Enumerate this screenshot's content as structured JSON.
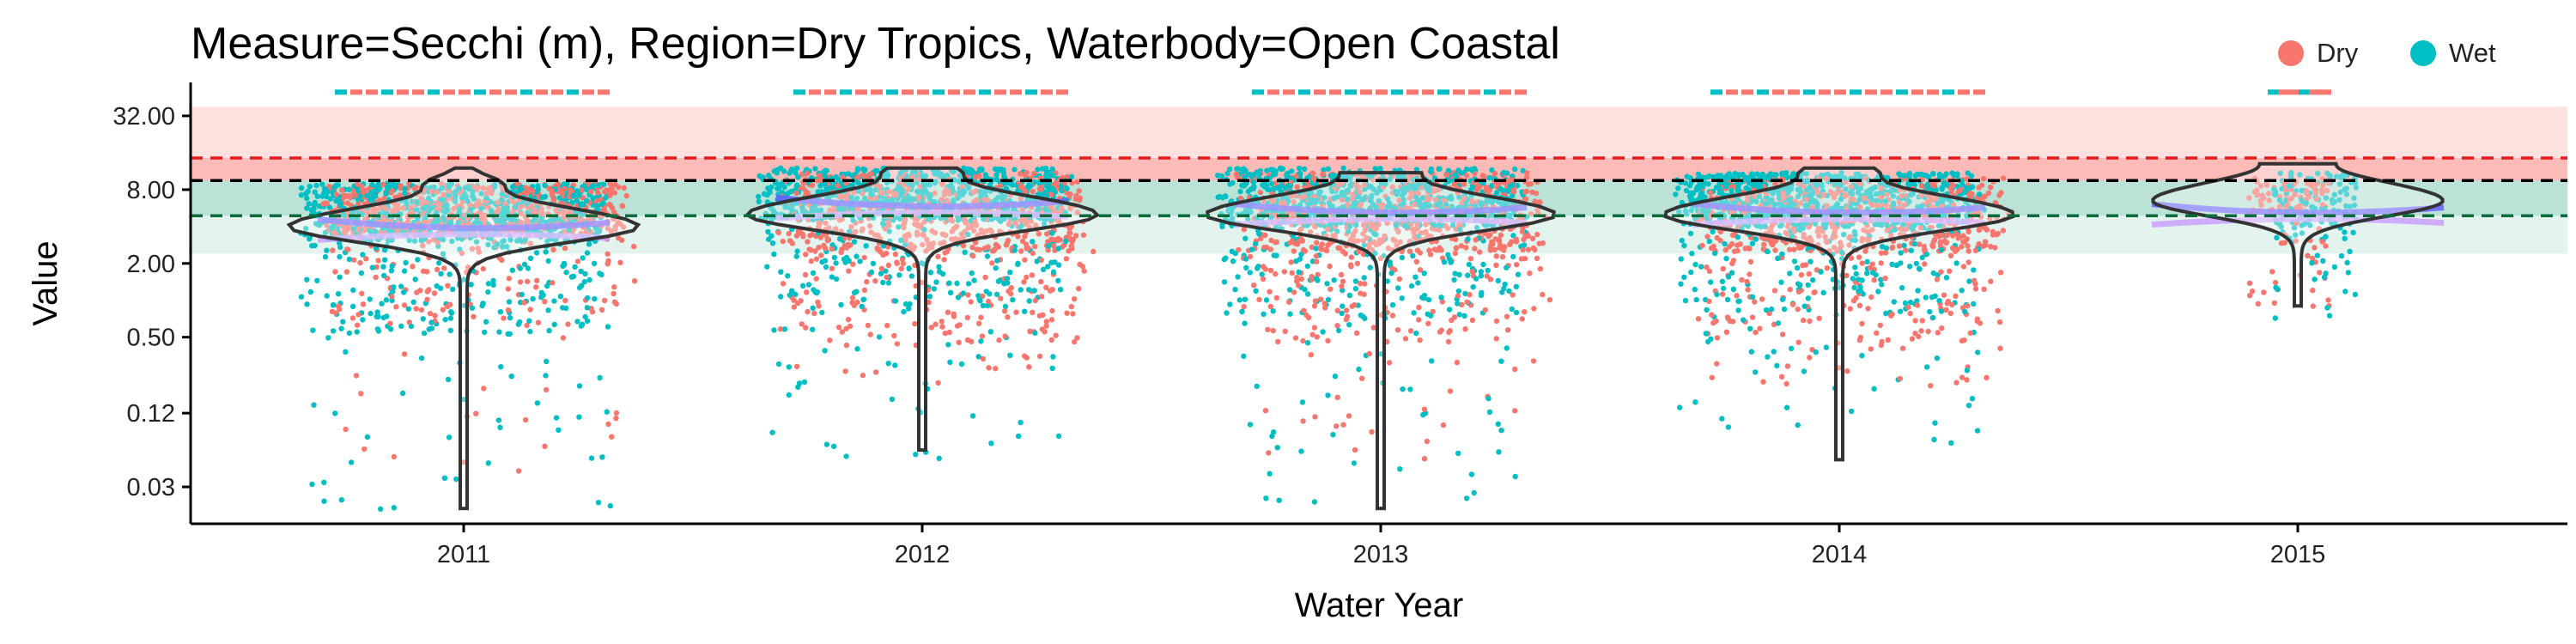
{
  "chart_data": {
    "type": "violin-scatter",
    "title": "Measure=Secchi (m), Region=Dry Tropics, Waterbody=Open Coastal",
    "xlabel": "Water Year",
    "ylabel": "Value",
    "y_scale": "log2",
    "ylim": [
      0.015,
      60
    ],
    "y_ticks": [
      0.03,
      0.12,
      0.5,
      2.0,
      8.0,
      32.0
    ],
    "y_tick_labels": [
      "0.03",
      "0.12",
      "0.50",
      "2.00",
      "8.00",
      "32.00"
    ],
    "categories": [
      "2011",
      "2012",
      "2013",
      "2014",
      "2015"
    ],
    "grid": false,
    "legend": {
      "placement": "top-right",
      "items": [
        {
          "name": "Dry",
          "color": "#F8766D"
        },
        {
          "name": "Wet",
          "color": "#00BFC4"
        }
      ]
    },
    "guidelines": {
      "red_dashed": 14.5,
      "black_dashed": 9.5,
      "green_dashed": 4.9
    },
    "bands": {
      "red_light": [
        9.5,
        38
      ],
      "red": [
        9.5,
        14.5
      ],
      "green": [
        4.9,
        9.5
      ],
      "green_light": [
        2.4,
        4.9
      ]
    },
    "violins": [
      {
        "year": "2011",
        "median": 4.0,
        "min": 0.02,
        "max": 12
      },
      {
        "year": "2012",
        "median": 5.0,
        "min": 0.06,
        "max": 12
      },
      {
        "year": "2013",
        "median": 5.0,
        "min": 0.02,
        "max": 11
      },
      {
        "year": "2014",
        "median": 5.0,
        "min": 0.05,
        "max": 12
      },
      {
        "year": "2015",
        "median": 6.5,
        "min": 0.9,
        "max": 13
      }
    ],
    "points": [
      {
        "year": "2011",
        "wet_min": 0.015,
        "wet_typ": [
          3,
          9
        ],
        "dry_min": 0.04,
        "dry_typ": [
          3.5,
          9
        ]
      },
      {
        "year": "2012",
        "wet_min": 0.05,
        "wet_typ": [
          4.5,
          12
        ],
        "dry_min": 0.2,
        "dry_typ": [
          2.5,
          11
        ]
      },
      {
        "year": "2013",
        "wet_min": 0.02,
        "wet_typ": [
          4,
          12
        ],
        "dry_min": 0.05,
        "dry_typ": [
          2.5,
          11
        ]
      },
      {
        "year": "2014",
        "wet_min": 0.06,
        "wet_typ": [
          4,
          11
        ],
        "dry_min": 0.2,
        "dry_typ": [
          2.5,
          10
        ]
      },
      {
        "year": "2015",
        "wet_min": 2.7,
        "wet_typ": [
          4,
          11
        ],
        "dry_min": 1.0,
        "dry_typ": [
          5,
          10
        ]
      }
    ]
  }
}
